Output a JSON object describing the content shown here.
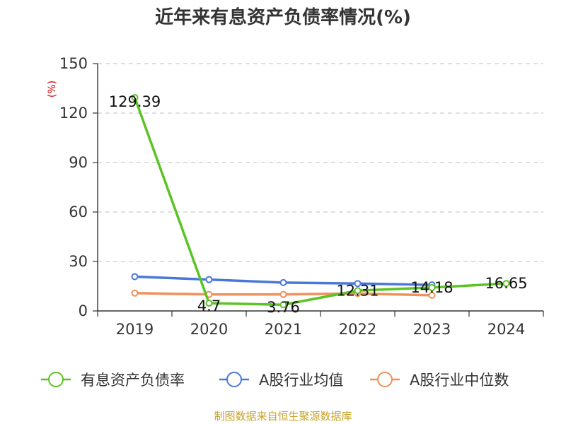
{
  "chart_data": {
    "type": "line",
    "title": "近年来有息资产负债率情况(%)",
    "unit_label": "(%)",
    "categories": [
      "2019",
      "2020",
      "2021",
      "2022",
      "2023",
      "2024"
    ],
    "ylim": [
      0,
      150
    ],
    "yticks": [
      0,
      30,
      60,
      90,
      120,
      150
    ],
    "grid": true,
    "legend_position": "bottom",
    "series": [
      {
        "name": "有息资产负债率",
        "color": "#5cc324",
        "values": [
          129.39,
          4.7,
          3.76,
          12.31,
          14.18,
          16.65
        ],
        "labels": [
          "129.39",
          "4.7",
          "3.76",
          "12.31",
          "14.18",
          "16.65"
        ]
      },
      {
        "name": "A股行业均值",
        "color": "#4a78d8",
        "values": [
          20.8,
          19.0,
          17.2,
          16.6,
          15.8,
          null
        ]
      },
      {
        "name": "A股行业中位数",
        "color": "#f0905a",
        "values": [
          10.8,
          10.0,
          10.0,
          10.6,
          9.5,
          null
        ]
      }
    ],
    "source": "制图数据来自恒生聚源数据库"
  }
}
